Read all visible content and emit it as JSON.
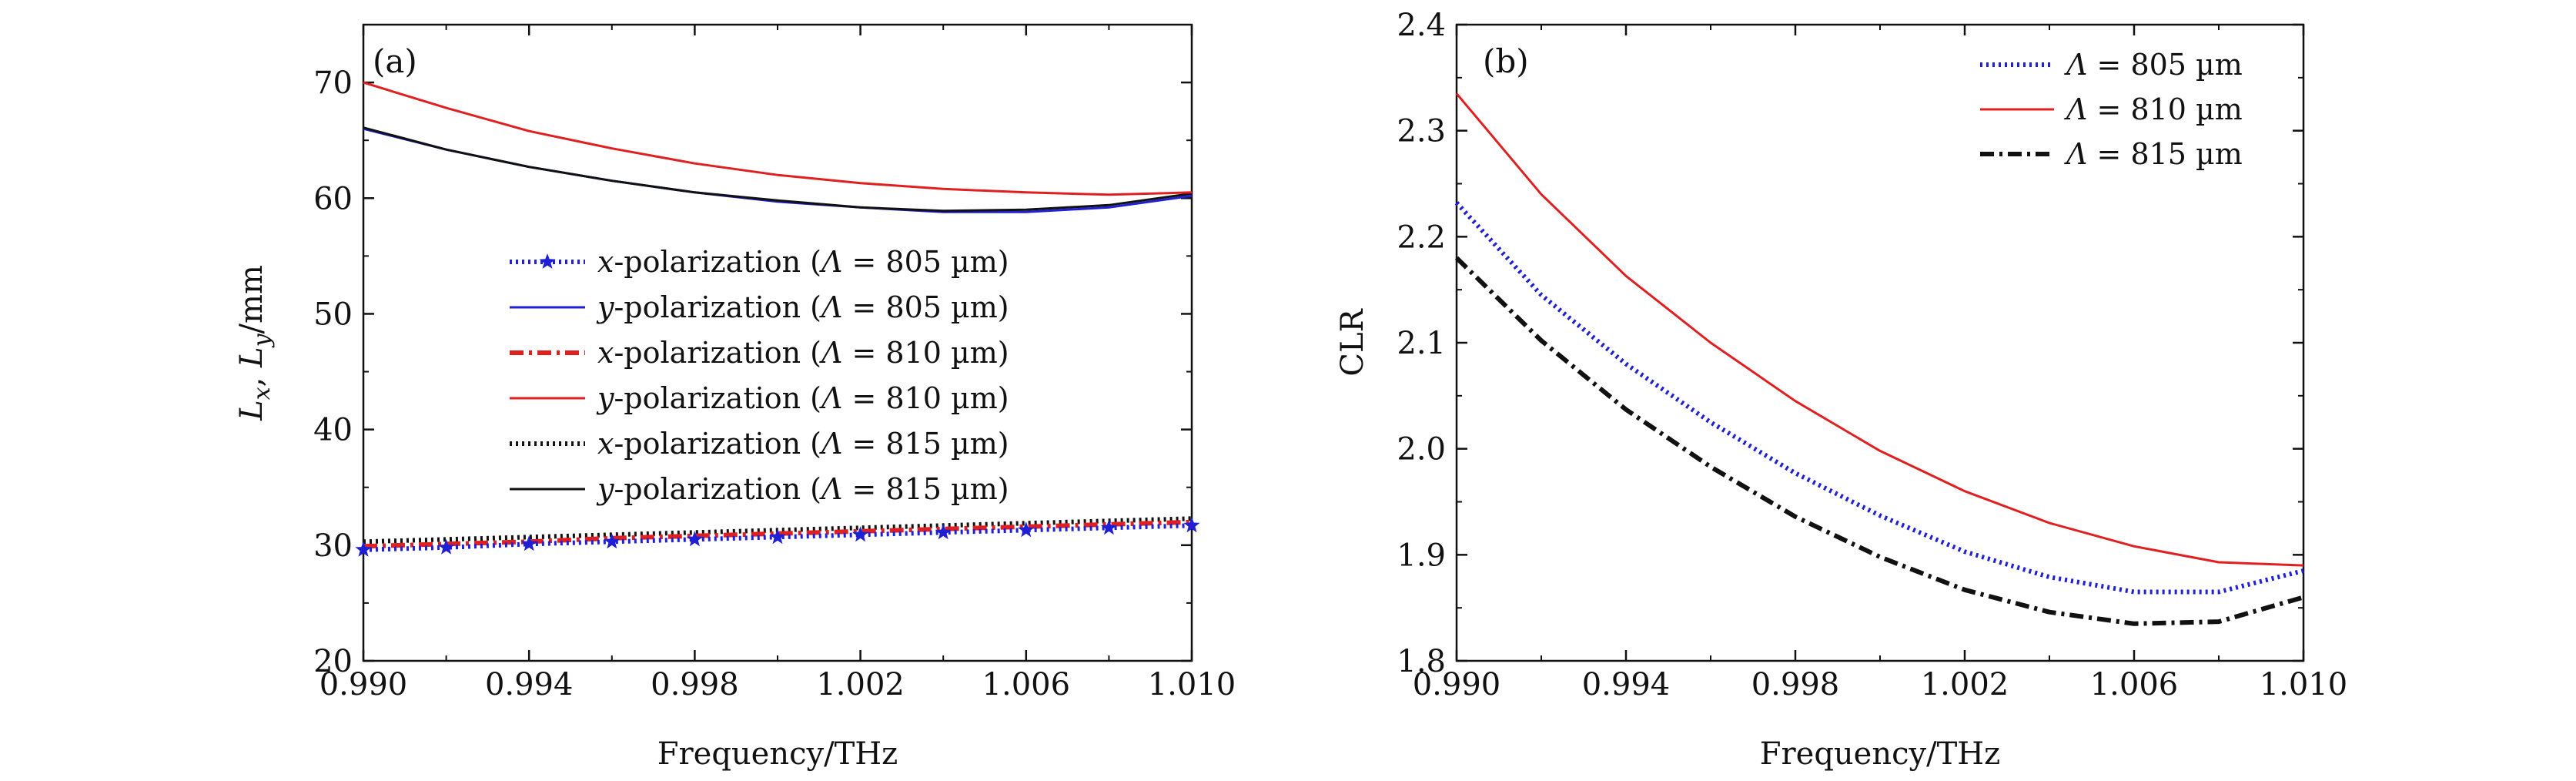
{
  "chart_data": [
    {
      "panel_label": "(a)",
      "type": "line",
      "xlabel": "Frequency/THz",
      "ylabel": {
        "var1": "L",
        "sub1": "x",
        "sep": ", ",
        "var2": "L",
        "sub2": "y",
        "unit": "/mm"
      },
      "xlim": [
        0.99,
        1.01
      ],
      "ylim": [
        20,
        75
      ],
      "xticks": [
        0.99,
        0.994,
        0.998,
        1.002,
        1.006,
        1.01
      ],
      "xtick_labels": [
        "0.990",
        "0.994",
        "0.998",
        "1.002",
        "1.006",
        "1.010"
      ],
      "yticks": [
        20,
        30,
        40,
        50,
        60,
        70
      ],
      "ytick_labels": [
        "20",
        "30",
        "40",
        "50",
        "60",
        "70"
      ],
      "x": [
        0.99,
        0.992,
        0.994,
        0.996,
        0.998,
        1.0,
        1.002,
        1.004,
        1.006,
        1.008,
        1.01
      ],
      "legend_position": "center-right",
      "series": [
        {
          "pol": "x",
          "text": "-polarization (",
          "lam": "Λ",
          "value": " = 805 µm)",
          "color": "#1f1fd6",
          "style": "dotted-star",
          "values": [
            29.6,
            29.8,
            30.1,
            30.3,
            30.5,
            30.7,
            30.9,
            31.1,
            31.3,
            31.5,
            31.7
          ]
        },
        {
          "pol": "y",
          "text": "-polarization (",
          "lam": "Λ",
          "value": " = 805 µm)",
          "color": "#1f1fd6",
          "style": "solid",
          "values": [
            66.0,
            64.2,
            62.7,
            61.5,
            60.5,
            59.7,
            59.2,
            58.8,
            58.8,
            59.2,
            60.2
          ]
        },
        {
          "pol": "x",
          "text": "-polarization (",
          "lam": "Λ",
          "value": " = 810 µm)",
          "color": "#e02020",
          "style": "dashdot",
          "values": [
            29.9,
            30.1,
            30.3,
            30.6,
            30.8,
            31.0,
            31.2,
            31.4,
            31.6,
            31.8,
            32.0
          ]
        },
        {
          "pol": "y",
          "text": "-polarization (",
          "lam": "Λ",
          "value": " = 810 µm)",
          "color": "#e02020",
          "style": "solid",
          "values": [
            70.0,
            67.8,
            65.8,
            64.3,
            63.0,
            62.0,
            61.3,
            60.8,
            60.5,
            60.3,
            60.5
          ]
        },
        {
          "pol": "x",
          "text": "-polarization (",
          "lam": "Λ",
          "value": " = 815 µm)",
          "color": "#111111",
          "style": "dotted",
          "values": [
            30.3,
            30.5,
            30.7,
            30.9,
            31.1,
            31.3,
            31.5,
            31.7,
            31.9,
            32.1,
            32.3
          ]
        },
        {
          "pol": "y",
          "text": "-polarization (",
          "lam": "Λ",
          "value": " = 815 µm)",
          "color": "#111111",
          "style": "solid",
          "values": [
            66.1,
            64.2,
            62.7,
            61.5,
            60.5,
            59.8,
            59.2,
            58.9,
            59.0,
            59.4,
            60.4
          ]
        }
      ]
    },
    {
      "panel_label": "(b)",
      "type": "line",
      "xlabel": "Frequency/THz",
      "ylabel": "CLR",
      "xlim": [
        0.99,
        1.01
      ],
      "ylim": [
        1.8,
        2.4
      ],
      "xticks": [
        0.99,
        0.994,
        0.998,
        1.002,
        1.006,
        1.01
      ],
      "xtick_labels": [
        "0.990",
        "0.994",
        "0.998",
        "1.002",
        "1.006",
        "1.010"
      ],
      "yticks": [
        1.8,
        1.9,
        2.0,
        2.1,
        2.2,
        2.3,
        2.4
      ],
      "ytick_labels": [
        "1.8",
        "1.9",
        "2.0",
        "2.1",
        "2.2",
        "2.3",
        "2.4"
      ],
      "x": [
        0.99,
        0.992,
        0.994,
        0.996,
        0.998,
        1.0,
        1.002,
        1.004,
        1.006,
        1.008,
        1.01
      ],
      "legend_position": "top-right",
      "series": [
        {
          "lam": "Λ",
          "value": " = 805 µm",
          "color": "#1f1fd6",
          "style": "dotted",
          "values": [
            2.232,
            2.145,
            2.08,
            2.025,
            1.977,
            1.937,
            1.903,
            1.879,
            1.865,
            1.865,
            1.885
          ]
        },
        {
          "lam": "Λ",
          "value": " = 810 µm",
          "color": "#e02020",
          "style": "solid",
          "values": [
            2.335,
            2.24,
            2.163,
            2.1,
            2.045,
            1.998,
            1.96,
            1.93,
            1.908,
            1.893,
            1.89
          ]
        },
        {
          "lam": "Λ",
          "value": " = 815 µm",
          "color": "#111111",
          "style": "dashdot",
          "values": [
            2.18,
            2.102,
            2.037,
            1.983,
            1.936,
            1.898,
            1.867,
            1.846,
            1.835,
            1.837,
            1.86
          ]
        }
      ]
    }
  ]
}
